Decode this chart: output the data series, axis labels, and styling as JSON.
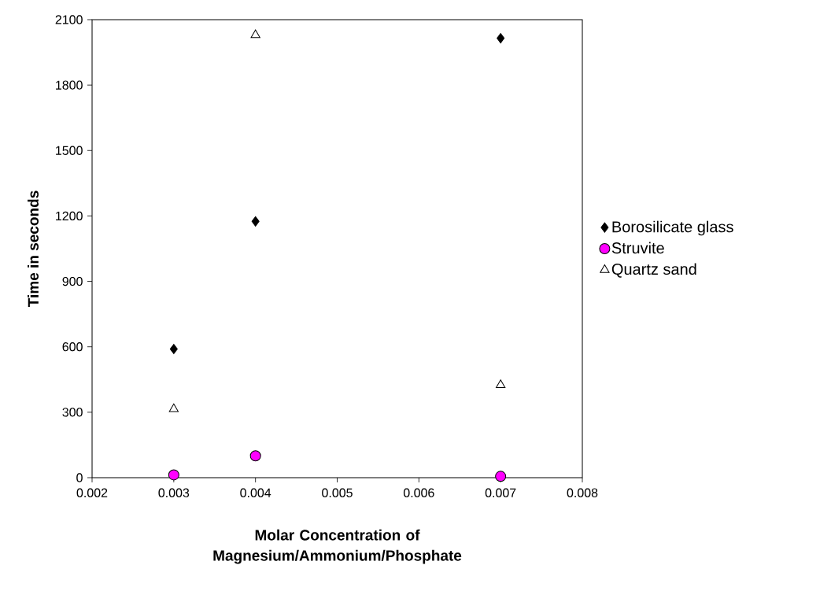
{
  "chart_data": {
    "type": "scatter",
    "xlabel": "Molar Concentration of Magnesium/Ammonium/Phosphate",
    "ylabel": "Time in seconds",
    "x": [
      0.003,
      0.004,
      0.007
    ],
    "series": [
      {
        "name": "Borosilicate glass",
        "color": "#000000",
        "marker": "diamond",
        "values": [
          590,
          1175,
          2015
        ]
      },
      {
        "name": "Struvite",
        "color": "#ff00ff",
        "marker": "circle",
        "values": [
          13,
          100,
          6
        ]
      },
      {
        "name": "Quartz sand",
        "color": "#ffffff",
        "marker": "triangle",
        "values": [
          315,
          2030,
          425
        ]
      }
    ],
    "xlim": [
      0.002,
      0.008
    ],
    "xticks": [
      0.002,
      0.003,
      0.004,
      0.005,
      0.006,
      0.007,
      0.008
    ],
    "ylim": [
      0,
      2100
    ],
    "yticks": [
      0,
      300,
      600,
      900,
      1200,
      1500,
      1800,
      2100
    ],
    "grid": false,
    "legend": "right"
  }
}
